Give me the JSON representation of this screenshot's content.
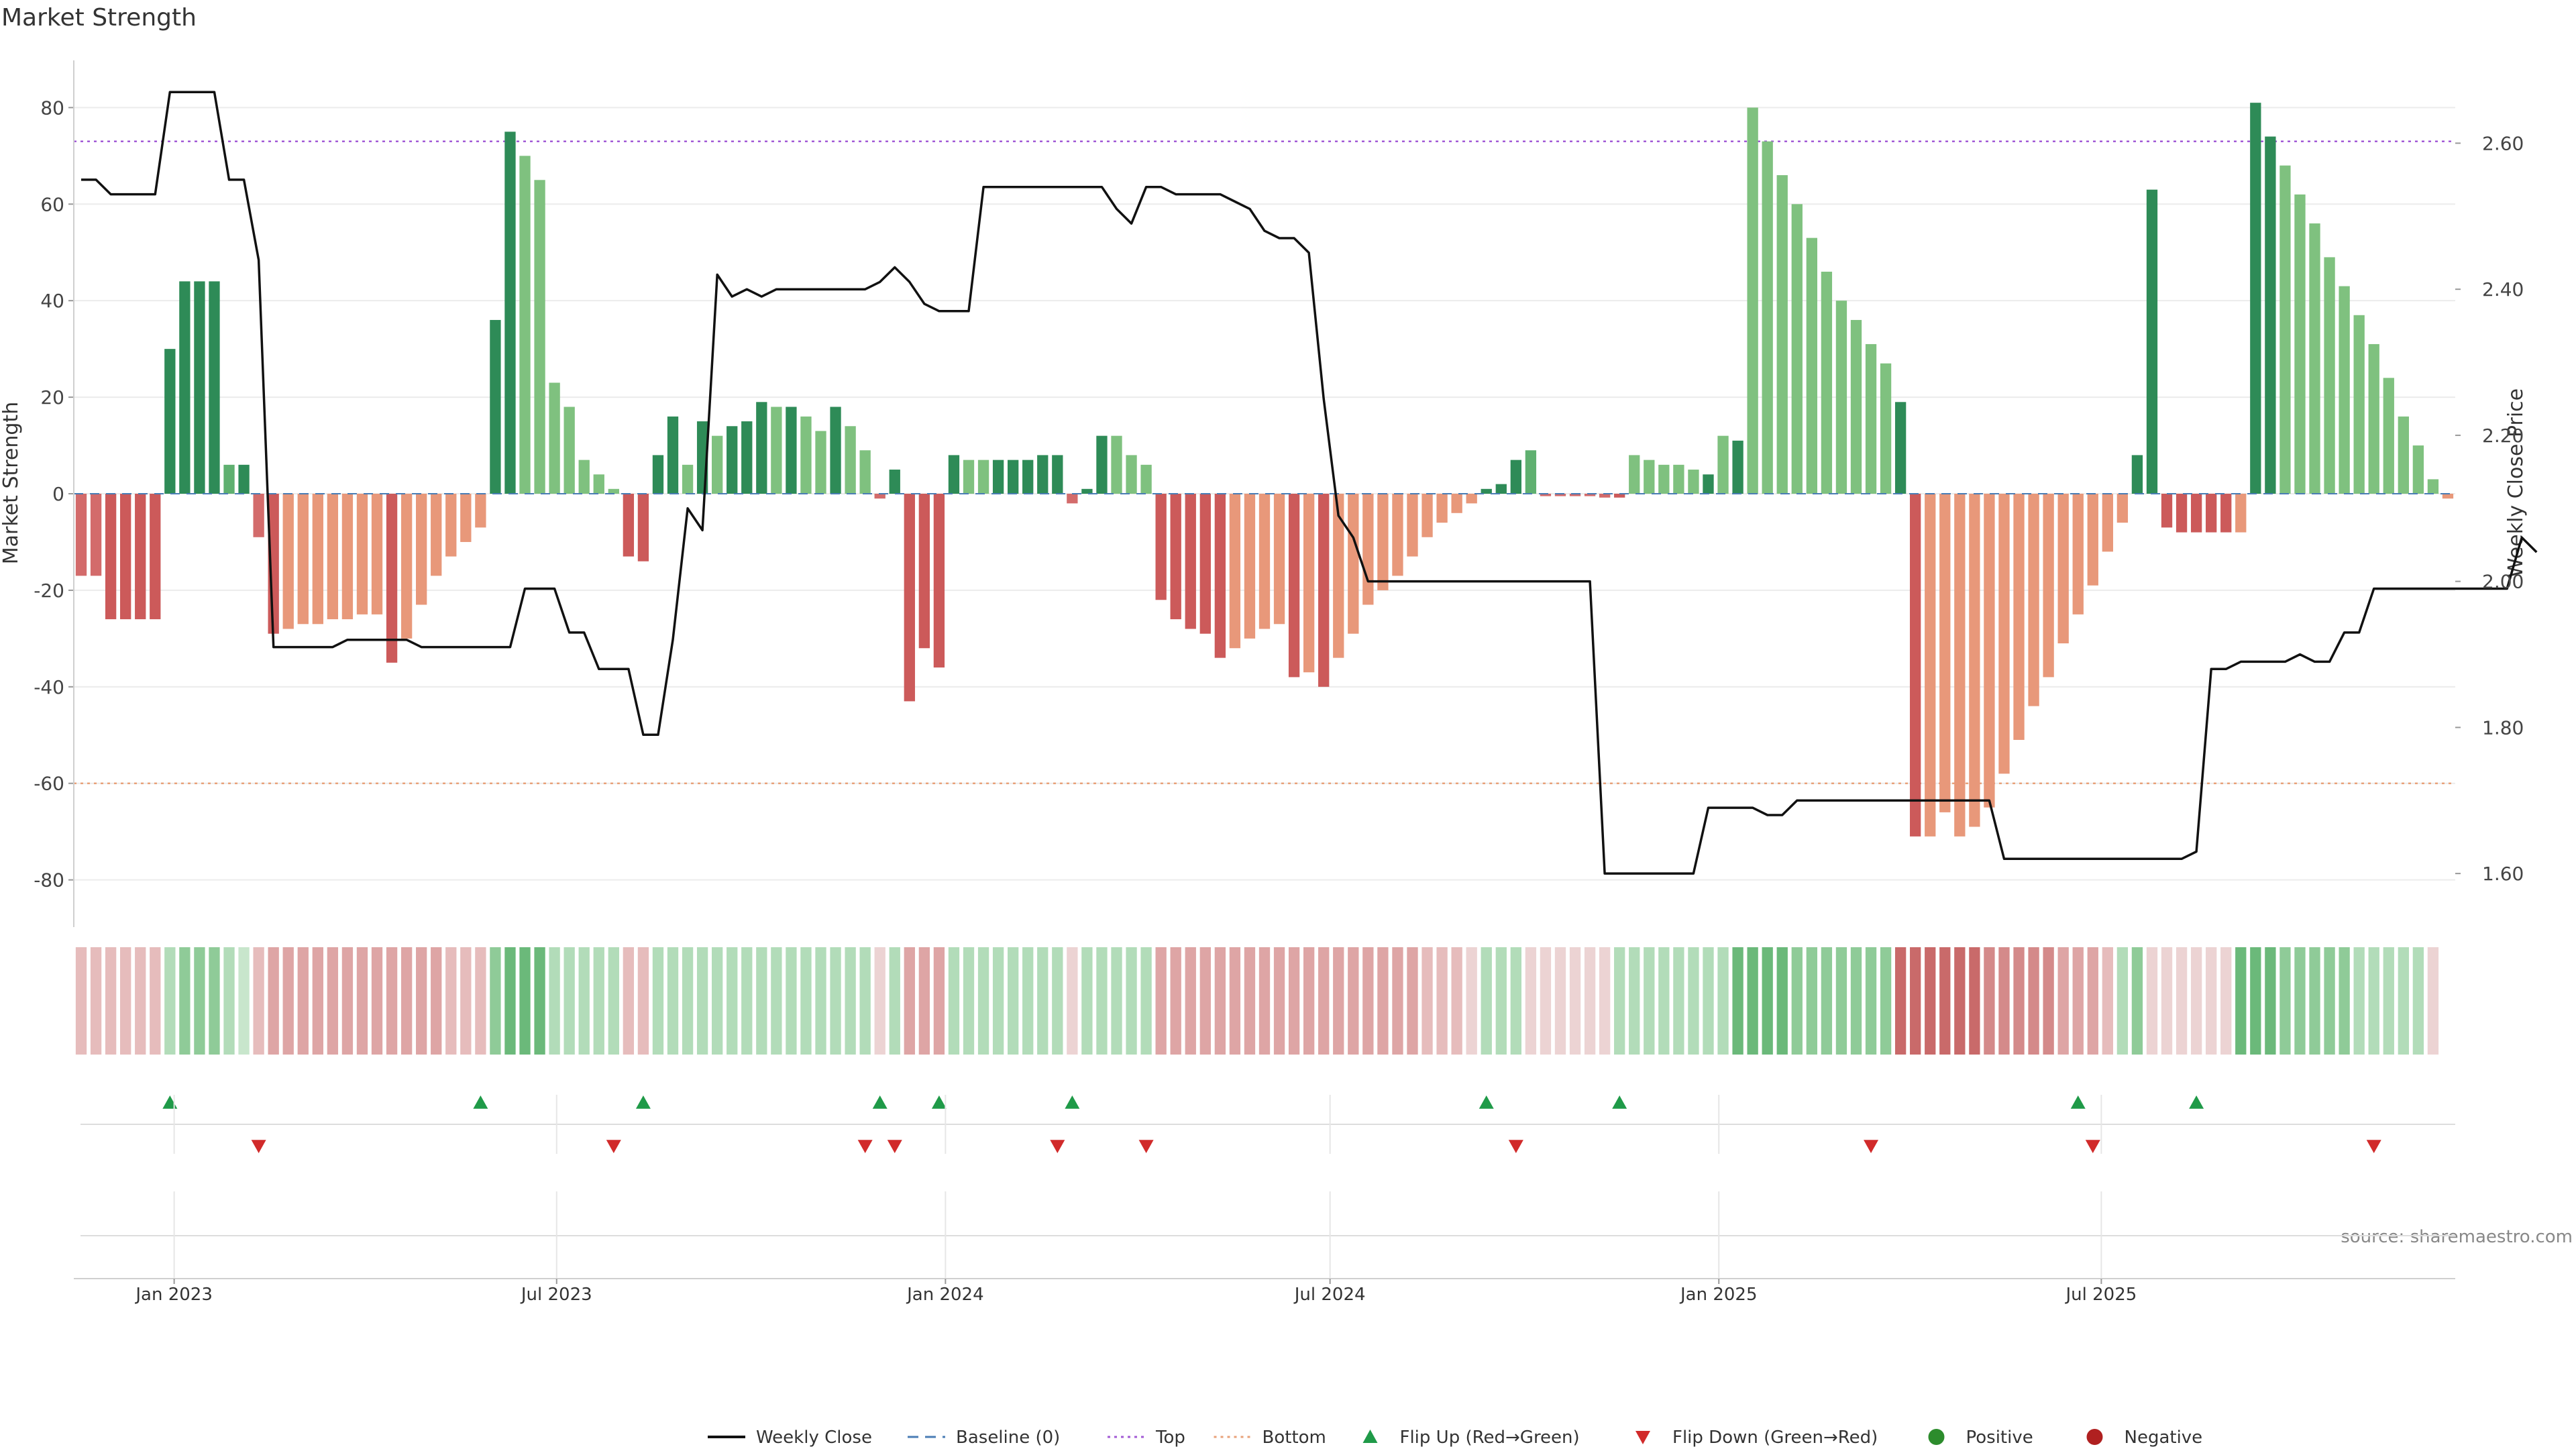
{
  "chart_data": {
    "type": "bar",
    "title": "Market Strength",
    "ylabel_left": "Market Strength",
    "ylabel_right": "Weekly Close Price",
    "source": "source: sharemaestro.com",
    "x_start_date": "2022-11-18",
    "bar_interval_days": 7,
    "x_ticks": [
      {
        "date": "2023-01-01",
        "label": "Jan 2023"
      },
      {
        "date": "2023-07-01",
        "label": "Jul 2023"
      },
      {
        "date": "2024-01-01",
        "label": "Jan 2024"
      },
      {
        "date": "2024-07-01",
        "label": "Jul 2024"
      },
      {
        "date": "2025-01-01",
        "label": "Jan 2025"
      },
      {
        "date": "2025-07-01",
        "label": "Jul 2025"
      }
    ],
    "ylim_left": [
      -87,
      87
    ],
    "yticks_left": [
      80,
      60,
      40,
      20,
      0,
      -20,
      -40,
      -60,
      -80
    ],
    "ylim_right": [
      1.545,
      2.695
    ],
    "yticks_right": [
      {
        "v": 2.6,
        "label": "2.60"
      },
      {
        "v": 2.4,
        "label": "2.40"
      },
      {
        "v": 2.2,
        "label": "2.20"
      },
      {
        "v": 2.0,
        "label": "2.00"
      },
      {
        "v": 1.8,
        "label": "1.80"
      },
      {
        "v": 1.6,
        "label": "1.60"
      }
    ],
    "top_threshold": 73,
    "bottom_threshold": -60,
    "strength": [
      -17,
      -17,
      -26,
      -26,
      -26,
      -26,
      30,
      44,
      44,
      44,
      6,
      6,
      -9,
      -29,
      -28,
      -27,
      -27,
      -26,
      -26,
      -25,
      -25,
      -35,
      -30,
      -23,
      -17,
      -13,
      -10,
      -7,
      36,
      75,
      70,
      65,
      23,
      18,
      7,
      4,
      1,
      -13,
      -14,
      8,
      16,
      6,
      15,
      12,
      14,
      15,
      19,
      18,
      18,
      16,
      13,
      18,
      14,
      9,
      -1,
      5,
      -43,
      -32,
      -36,
      8,
      7,
      7,
      7,
      7,
      7,
      8,
      8,
      -2,
      1,
      12,
      12,
      8,
      6,
      -22,
      -26,
      -28,
      -29,
      -34,
      -32,
      -30,
      -28,
      -27,
      -38,
      -37,
      -40,
      -34,
      -29,
      -23,
      -20,
      -17,
      -13,
      -9,
      -6,
      -4,
      -2,
      1,
      2,
      7,
      9,
      -0.5,
      -0.5,
      -0.5,
      -0.5,
      -0.8,
      -0.8,
      8,
      7,
      6,
      6,
      5,
      4,
      12,
      11,
      80,
      73,
      66,
      60,
      53,
      46,
      40,
      36,
      31,
      27,
      19,
      -71,
      -71,
      -66,
      -71,
      -69,
      -65,
      -58,
      -51,
      -44,
      -38,
      -31,
      -25,
      -19,
      -12,
      -6,
      8,
      63,
      -7,
      -8,
      -8,
      -8,
      -8,
      -8,
      81,
      74,
      68,
      62,
      56,
      49,
      43,
      37,
      31,
      24,
      16,
      10,
      3,
      -1
    ],
    "strength_color_levels": [
      "mid",
      "mid",
      "dark",
      "dark",
      "dark",
      "dark",
      "dark",
      "dark",
      "dark",
      "dark",
      "mid",
      "dark",
      "mid",
      "dark",
      "light",
      "light",
      "light",
      "light",
      "light",
      "light",
      "light",
      "dark",
      "light",
      "light",
      "light",
      "light",
      "light",
      "light",
      "dark",
      "dark",
      "light",
      "light",
      "light",
      "light",
      "light",
      "light",
      "light",
      "dark",
      "dark",
      "dark",
      "dark",
      "light",
      "dark",
      "light",
      "dark",
      "dark",
      "dark",
      "light",
      "dark",
      "light",
      "light",
      "dark",
      "light",
      "light",
      "mid",
      "dark",
      "dark",
      "dark",
      "dark",
      "dark",
      "light",
      "light",
      "dark",
      "dark",
      "dark",
      "dark",
      "dark",
      "mid",
      "dark",
      "dark",
      "light",
      "light",
      "light",
      "dark",
      "dark",
      "dark",
      "dark",
      "dark",
      "light",
      "light",
      "light",
      "light",
      "dark",
      "light",
      "dark",
      "light",
      "light",
      "light",
      "light",
      "light",
      "light",
      "light",
      "light",
      "light",
      "light",
      "dark",
      "dark",
      "dark",
      "mid",
      "mid",
      "mid",
      "mid",
      "mid",
      "mid",
      "dark",
      "light",
      "light",
      "light",
      "light",
      "light",
      "dark",
      "light",
      "dark",
      "light",
      "light",
      "light",
      "light",
      "light",
      "light",
      "light",
      "light",
      "light",
      "light",
      "dark",
      "dark",
      "light",
      "light",
      "light",
      "light",
      "light",
      "light",
      "light",
      "light",
      "light",
      "light",
      "light",
      "light",
      "light",
      "light",
      "dark",
      "dark",
      "dark",
      "dark",
      "dark",
      "dark",
      "dark",
      "light",
      "dark",
      "dark",
      "light",
      "light",
      "light",
      "light",
      "light",
      "light",
      "light",
      "light",
      "light",
      "light",
      "light",
      "light",
      "light",
      "light"
    ],
    "close_price": [
      2.55,
      2.55,
      2.53,
      2.53,
      2.53,
      2.53,
      2.67,
      2.67,
      2.67,
      2.67,
      2.55,
      2.55,
      2.44,
      1.91,
      1.91,
      1.91,
      1.91,
      1.91,
      1.92,
      1.92,
      1.92,
      1.92,
      1.92,
      1.91,
      1.91,
      1.91,
      1.91,
      1.91,
      1.91,
      1.91,
      1.99,
      1.99,
      1.99,
      1.93,
      1.93,
      1.88,
      1.88,
      1.88,
      1.79,
      1.79,
      1.92,
      2.1,
      2.07,
      2.42,
      2.39,
      2.4,
      2.39,
      2.4,
      2.4,
      2.4,
      2.4,
      2.4,
      2.4,
      2.4,
      2.41,
      2.43,
      2.41,
      2.38,
      2.37,
      2.37,
      2.37,
      2.54,
      2.54,
      2.54,
      2.54,
      2.54,
      2.54,
      2.54,
      2.54,
      2.54,
      2.51,
      2.49,
      2.54,
      2.54,
      2.53,
      2.53,
      2.53,
      2.53,
      2.52,
      2.51,
      2.48,
      2.47,
      2.47,
      2.45,
      2.25,
      2.09,
      2.06,
      2.0,
      2.0,
      2.0,
      2.0,
      2.0,
      2.0,
      2.0,
      2.0,
      2.0,
      2.0,
      2.0,
      2.0,
      2.0,
      2.0,
      2.0,
      2.0,
      1.6,
      1.6,
      1.6,
      1.6,
      1.6,
      1.6,
      1.6,
      1.69,
      1.69,
      1.69,
      1.69,
      1.68,
      1.68,
      1.7,
      1.7,
      1.7,
      1.7,
      1.7,
      1.7,
      1.7,
      1.7,
      1.7,
      1.7,
      1.7,
      1.7,
      1.7,
      1.7,
      1.62,
      1.62,
      1.62,
      1.62,
      1.62,
      1.62,
      1.62,
      1.62,
      1.62,
      1.62,
      1.62,
      1.62,
      1.62,
      1.63,
      1.88,
      1.88,
      1.89,
      1.89,
      1.89,
      1.89,
      1.9,
      1.89,
      1.89,
      1.93,
      1.93,
      1.99,
      1.99,
      1.99,
      1.99,
      1.99,
      1.99,
      1.99,
      1.99,
      1.99,
      1.99,
      2.06,
      2.04
    ],
    "heat_strip": [
      -2,
      -2,
      -2,
      -2,
      -2,
      -2,
      2,
      3,
      3,
      3,
      2,
      1,
      -2,
      -3,
      -3,
      -3,
      -3,
      -3,
      -3,
      -3,
      -3,
      -3,
      -3,
      -3,
      -3,
      -2,
      -2,
      -2,
      3,
      4,
      4,
      4,
      2,
      2,
      2,
      2,
      2,
      -2,
      -2,
      2,
      2,
      2,
      2,
      2,
      2,
      2,
      2,
      2,
      2,
      2,
      2,
      2,
      2,
      2,
      -1,
      2,
      -3,
      -3,
      -3,
      2,
      2,
      2,
      2,
      2,
      2,
      2,
      2,
      -1,
      2,
      2,
      2,
      2,
      2,
      -3,
      -3,
      -3,
      -3,
      -3,
      -3,
      -3,
      -3,
      -3,
      -3,
      -3,
      -3,
      -3,
      -3,
      -3,
      -3,
      -3,
      -3,
      -2,
      -2,
      -2,
      -1,
      2,
      2,
      2,
      -1,
      -1,
      -1,
      -1,
      -1,
      -1,
      2,
      2,
      2,
      2,
      2,
      2,
      2,
      2,
      4,
      4,
      4,
      4,
      3,
      3,
      3,
      3,
      3,
      3,
      3,
      -5,
      -5,
      -5,
      -5,
      -5,
      -5,
      -4,
      -4,
      -4,
      -4,
      -4,
      -3,
      -3,
      -3,
      -2,
      2,
      3,
      -1,
      -1,
      -1,
      -1,
      -1,
      -1,
      4,
      4,
      4,
      3,
      3,
      3,
      3,
      3,
      2,
      2,
      2,
      2,
      2,
      -1
    ],
    "flip_up_idx": [
      6,
      27,
      38,
      54,
      58,
      67,
      95,
      104,
      135,
      143
    ],
    "flip_down_idx": [
      12,
      36,
      53,
      55,
      66,
      72,
      97,
      121,
      136,
      155
    ],
    "legend": [
      {
        "label": "Weekly Close",
        "marker": "line",
        "color": "#111111"
      },
      {
        "label": "Baseline (0)",
        "marker": "dash",
        "color": "#4a7db5"
      },
      {
        "label": "Top",
        "marker": "dot-line",
        "color": "#a35bd6"
      },
      {
        "label": "Bottom",
        "marker": "dot-line",
        "color": "#e8a27a"
      },
      {
        "label": "Flip Up (Red→Green)",
        "marker": "tri-up",
        "color": "#1f9a48"
      },
      {
        "label": "Flip Down (Green→Red)",
        "marker": "tri-down",
        "color": "#d12a2a"
      },
      {
        "label": "Positive",
        "marker": "circle",
        "color": "#2c8c2c"
      },
      {
        "label": "Negative",
        "marker": "circle",
        "color": "#b02020"
      }
    ],
    "colors": {
      "pos_dark": "#2e8b57",
      "pos_mid": "#5fb070",
      "pos_light": "#7fc17f",
      "neg_dark": "#cc5a5a",
      "neg_mid": "#d36b6b",
      "neg_light": "#e8987a",
      "line": "#111111",
      "grid": "#ececec"
    }
  }
}
